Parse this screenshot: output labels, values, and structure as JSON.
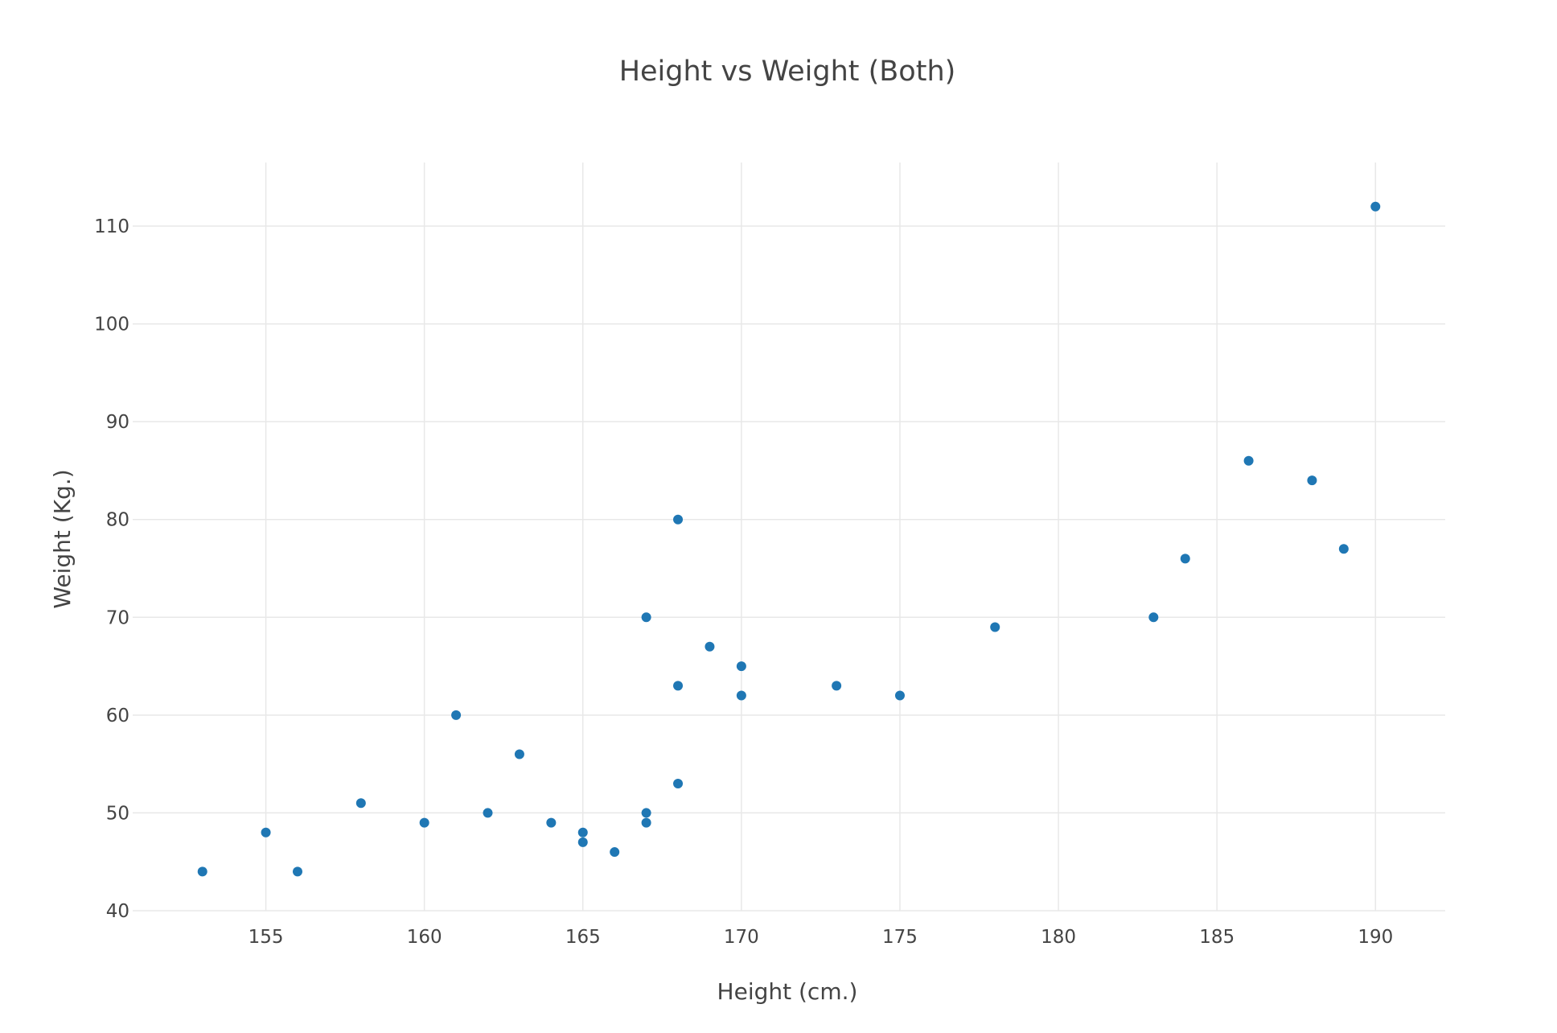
{
  "chart_data": {
    "type": "scatter",
    "title": "Height vs Weight (Both)",
    "xlabel": "Height (cm.)",
    "ylabel": "Weight (Kg.)",
    "xlim": [
      150.8,
      192.2
    ],
    "ylim": [
      40,
      116.5
    ],
    "xticks": [
      155,
      160,
      165,
      170,
      175,
      180,
      185,
      190
    ],
    "yticks": [
      40,
      50,
      60,
      70,
      80,
      90,
      100,
      110
    ],
    "grid": true,
    "legend": "none",
    "marker_color": "#1f77b4",
    "series": [
      {
        "x": [
          153,
          155,
          156,
          158,
          160,
          161,
          162,
          163,
          164,
          165,
          165,
          166,
          167,
          167,
          167,
          168,
          168,
          168,
          169,
          170,
          170,
          173,
          175,
          178,
          183,
          184,
          186,
          188,
          189,
          190
        ],
        "y": [
          44,
          48,
          44,
          51,
          49,
          60,
          50,
          56,
          49,
          48,
          47,
          46,
          50,
          49,
          70,
          53,
          63,
          80,
          67,
          65,
          62,
          63,
          62,
          69,
          70,
          76,
          86,
          84,
          77,
          112
        ]
      }
    ]
  }
}
